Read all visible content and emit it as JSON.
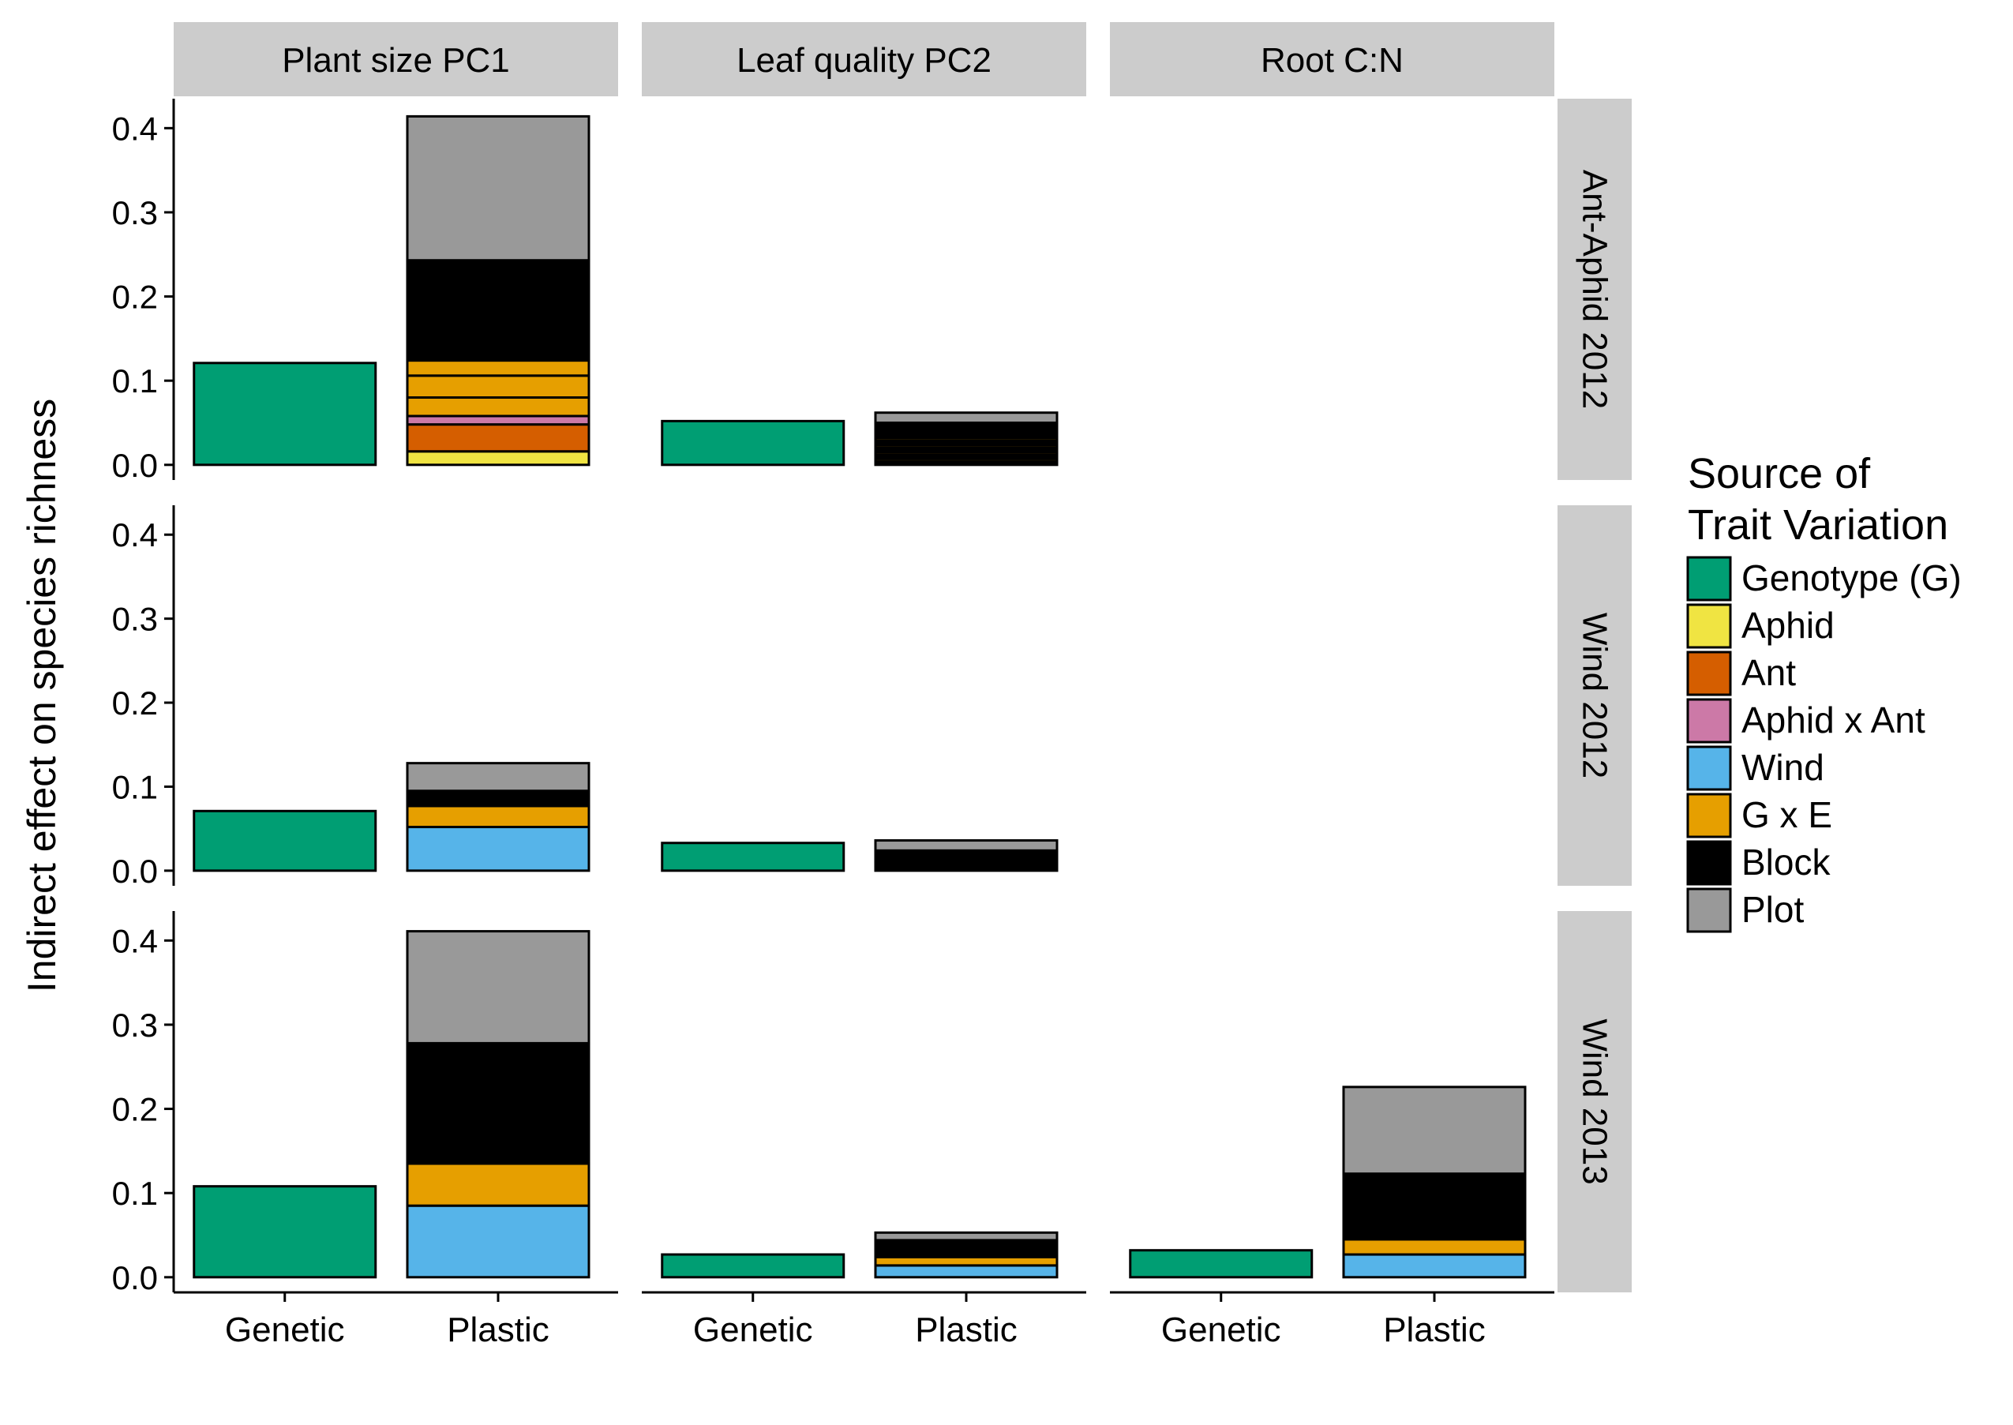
{
  "chart_data": {
    "type": "bar",
    "stacked": true,
    "facets": {
      "columns": [
        "Plant size PC1",
        "Leaf quality PC2",
        "Root C:N"
      ],
      "rows": [
        "Ant-Aphid 2012",
        "Wind 2012",
        "Wind 2013"
      ]
    },
    "categories": [
      "Genetic",
      "Plastic"
    ],
    "ylabel": "Indirect effect on species richness",
    "xlabel": "",
    "ylim": [
      -0.018,
      0.435
    ],
    "yticks": [
      0.0,
      0.1,
      0.2,
      0.3,
      0.4
    ],
    "ytick_labels": [
      "0.0",
      "0.1",
      "0.2",
      "0.3",
      "0.4"
    ],
    "legend": {
      "title_lines": [
        "Source of",
        "Trait Variation"
      ],
      "position": "right",
      "items": [
        {
          "label": "Genotype (G)",
          "color": "#009E73"
        },
        {
          "label": "Aphid",
          "color": "#F0E442"
        },
        {
          "label": "Ant",
          "color": "#D55E00"
        },
        {
          "label": "Aphid x Ant",
          "color": "#CC79A7"
        },
        {
          "label": "Wind",
          "color": "#56B4E9"
        },
        {
          "label": "G x E",
          "color": "#E69F00"
        },
        {
          "label": "Block",
          "color": "#000000"
        },
        {
          "label": "Plot",
          "color": "#999999"
        }
      ]
    },
    "panels": [
      {
        "row": 0,
        "col": 0,
        "bars": [
          {
            "category": "Genetic",
            "segments": [
              {
                "source": "Genotype (G)",
                "value": 0.121
              }
            ]
          },
          {
            "category": "Plastic",
            "segments": [
              {
                "source": "Aphid",
                "value": 0.016
              },
              {
                "source": "Ant",
                "value": 0.032
              },
              {
                "source": "Aphid x Ant",
                "value": 0.01
              },
              {
                "source": "G x E",
                "value": 0.022
              },
              {
                "source": "G x E",
                "value": 0.026
              },
              {
                "source": "G x E",
                "value": 0.018
              },
              {
                "source": "Block",
                "value": 0.119
              },
              {
                "source": "Plot",
                "value": 0.171
              }
            ]
          }
        ]
      },
      {
        "row": 0,
        "col": 1,
        "bars": [
          {
            "category": "Genetic",
            "segments": [
              {
                "source": "Genotype (G)",
                "value": 0.052
              }
            ]
          },
          {
            "category": "Plastic",
            "segments": [
              {
                "source": "Block",
                "value": 0.004
              },
              {
                "source": "G x E",
                "value": 0.003
              },
              {
                "source": "Block",
                "value": 0.005
              },
              {
                "source": "G x E",
                "value": 0.003
              },
              {
                "source": "Block",
                "value": 0.005
              },
              {
                "source": "G x E",
                "value": 0.003
              },
              {
                "source": "Block",
                "value": 0.006
              },
              {
                "source": "G x E",
                "value": 0.003
              },
              {
                "source": "Block",
                "value": 0.018
              },
              {
                "source": "Plot",
                "value": 0.012
              }
            ]
          }
        ]
      },
      {
        "row": 0,
        "col": 2,
        "bars": []
      },
      {
        "row": 1,
        "col": 0,
        "bars": [
          {
            "category": "Genetic",
            "segments": [
              {
                "source": "Genotype (G)",
                "value": 0.071
              }
            ]
          },
          {
            "category": "Plastic",
            "segments": [
              {
                "source": "Wind",
                "value": 0.052
              },
              {
                "source": "G x E",
                "value": 0.025
              },
              {
                "source": "Block",
                "value": 0.018
              },
              {
                "source": "Plot",
                "value": 0.033
              }
            ]
          }
        ]
      },
      {
        "row": 1,
        "col": 1,
        "bars": [
          {
            "category": "Genetic",
            "segments": [
              {
                "source": "Genotype (G)",
                "value": 0.033
              }
            ]
          },
          {
            "category": "Plastic",
            "segments": [
              {
                "source": "Block",
                "value": 0.004
              },
              {
                "source": "G x E",
                "value": 0.002
              },
              {
                "source": "Block",
                "value": 0.003
              },
              {
                "source": "G x E",
                "value": 0.002
              },
              {
                "source": "Block",
                "value": 0.013
              },
              {
                "source": "Plot",
                "value": 0.012
              }
            ]
          }
        ]
      },
      {
        "row": 1,
        "col": 2,
        "bars": []
      },
      {
        "row": 2,
        "col": 0,
        "bars": [
          {
            "category": "Genetic",
            "segments": [
              {
                "source": "Genotype (G)",
                "value": 0.108
              }
            ]
          },
          {
            "category": "Plastic",
            "segments": [
              {
                "source": "Wind",
                "value": 0.085
              },
              {
                "source": "G x E",
                "value": 0.05
              },
              {
                "source": "Block",
                "value": 0.143
              },
              {
                "source": "Plot",
                "value": 0.133
              }
            ]
          }
        ]
      },
      {
        "row": 2,
        "col": 1,
        "bars": [
          {
            "category": "Genetic",
            "segments": [
              {
                "source": "Genotype (G)",
                "value": 0.027
              }
            ]
          },
          {
            "category": "Plastic",
            "segments": [
              {
                "source": "Wind",
                "value": 0.014
              },
              {
                "source": "G x E",
                "value": 0.01
              },
              {
                "source": "Block",
                "value": 0.02
              },
              {
                "source": "Plot",
                "value": 0.009
              }
            ]
          }
        ]
      },
      {
        "row": 2,
        "col": 2,
        "bars": [
          {
            "category": "Genetic",
            "segments": [
              {
                "source": "Genotype (G)",
                "value": 0.032
              }
            ]
          },
          {
            "category": "Plastic",
            "segments": [
              {
                "source": "Wind",
                "value": 0.027
              },
              {
                "source": "G x E",
                "value": 0.018
              },
              {
                "source": "Block",
                "value": 0.078
              },
              {
                "source": "Plot",
                "value": 0.103
              }
            ]
          }
        ]
      }
    ]
  }
}
